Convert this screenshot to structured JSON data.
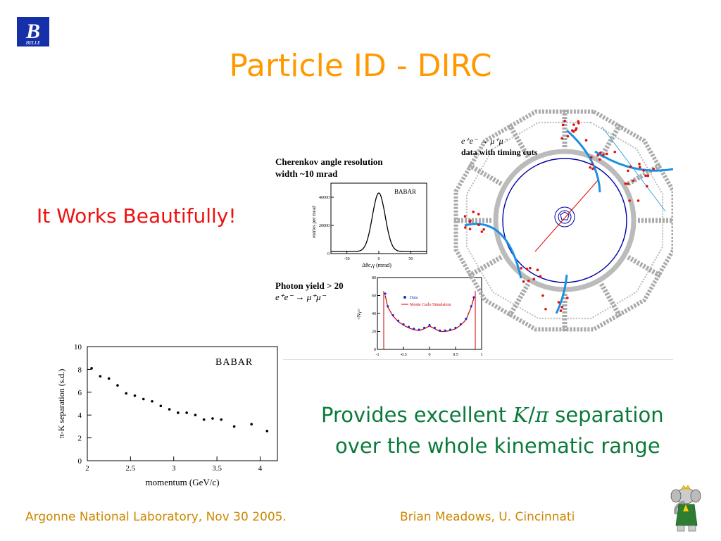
{
  "slide": {
    "title": "Particle ID - DIRC",
    "works": "It Works Beautifully!",
    "separation_line1_pre": "Provides excellent ",
    "separation_line1_K": "K",
    "separation_line1_slash": "/",
    "separation_line1_pi": "π",
    "separation_line1_post": " separation",
    "separation_line2": "over the whole kinematic range",
    "footer_left": "Argonne National Laboratory, Nov 30 2005.",
    "footer_right": "Brian Meadows, U. Cincinnati",
    "logo_text": "BELLE",
    "logo_letter": "B"
  },
  "labels": {
    "cherenkov_line1": "Cherenkov angle resolution",
    "cherenkov_line2": "width ~10 mrad",
    "photon_yield": "Photon yield > 20",
    "process": "e⁺e⁻ → μ⁺μ⁻",
    "timing_cuts": "data with timing cuts",
    "babar": "BABAR"
  },
  "colors": {
    "title": "#ff9900",
    "works": "#ee1111",
    "separation": "#0a7a3a",
    "footer": "#cc8800"
  },
  "chart_data": [
    {
      "type": "line",
      "name": "cherenkov-angle-resolution",
      "xlabel": "Δθc,γ (mrad)",
      "ylabel": "entries per mrad",
      "xticks": [
        "-50",
        "0",
        "50"
      ],
      "yticks": [
        "0",
        "20000",
        "40000"
      ],
      "xlim": [
        -75,
        75
      ],
      "ylim": [
        0,
        50000
      ],
      "annotation": "BABAR",
      "peak_center": 0,
      "peak_height": 43000,
      "width_mrad": 10,
      "baseline": 1500
    },
    {
      "type": "line",
      "name": "photon-yield",
      "ylabel": "<Nγ>",
      "xticks": [
        "-1",
        "-0.5",
        "0",
        "0.5",
        "1"
      ],
      "yticks": [
        "0",
        "20",
        "40",
        "60",
        "80"
      ],
      "xlim": [
        -1,
        1
      ],
      "ylim": [
        0,
        80
      ],
      "legend": [
        "Data",
        "Monte Carlo Simulation"
      ],
      "series": [
        {
          "name": "Data",
          "x": [
            -0.85,
            -0.8,
            -0.7,
            -0.6,
            -0.5,
            -0.4,
            -0.3,
            -0.2,
            -0.1,
            0.0,
            0.1,
            0.2,
            0.3,
            0.4,
            0.5,
            0.6,
            0.7,
            0.8,
            0.85
          ],
          "y": [
            62,
            48,
            38,
            32,
            28,
            25,
            23,
            22,
            24,
            27,
            24,
            21,
            21,
            22,
            24,
            28,
            34,
            48,
            58
          ]
        },
        {
          "name": "Monte Carlo Simulation",
          "x": [
            -0.85,
            -0.8,
            -0.7,
            -0.6,
            -0.5,
            -0.4,
            -0.3,
            -0.2,
            -0.1,
            0.0,
            0.1,
            0.2,
            0.3,
            0.4,
            0.5,
            0.6,
            0.7,
            0.8,
            0.85
          ],
          "y": [
            60,
            47,
            37,
            31,
            27,
            24,
            22,
            21,
            23,
            26,
            23,
            20,
            20,
            21,
            23,
            27,
            33,
            47,
            57
          ]
        }
      ]
    },
    {
      "type": "scatter",
      "name": "pi-k-separation",
      "xlabel": "momentum (GeV/c)",
      "ylabel": "π-K separation (s.d.)",
      "xticks": [
        "2",
        "2.5",
        "3",
        "3.5",
        "4"
      ],
      "yticks": [
        "0",
        "2",
        "4",
        "6",
        "8",
        "10"
      ],
      "xlim": [
        2,
        4.2
      ],
      "ylim": [
        0,
        10
      ],
      "annotation": "BABAR",
      "x": [
        2.05,
        2.15,
        2.25,
        2.35,
        2.45,
        2.55,
        2.65,
        2.75,
        2.85,
        2.95,
        3.05,
        3.15,
        3.25,
        3.35,
        3.45,
        3.55,
        3.7,
        3.9,
        4.08
      ],
      "y": [
        8.1,
        7.4,
        7.2,
        6.6,
        5.9,
        5.7,
        5.4,
        5.2,
        4.8,
        4.5,
        4.2,
        4.2,
        4.0,
        3.6,
        3.7,
        3.6,
        3.0,
        3.2,
        2.6
      ]
    }
  ]
}
